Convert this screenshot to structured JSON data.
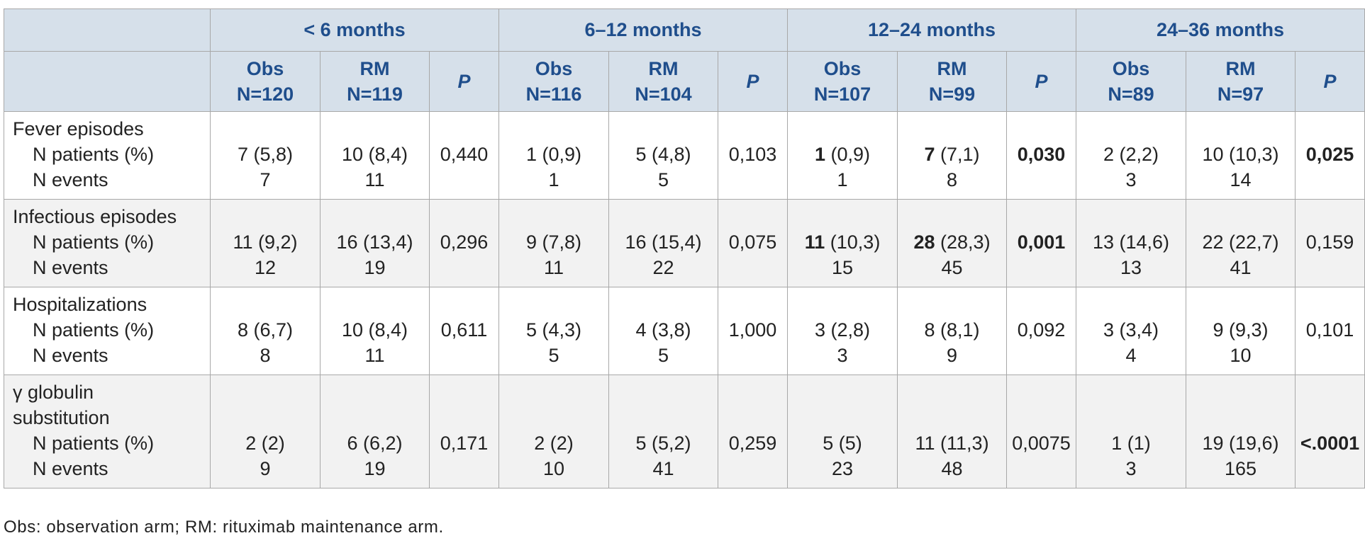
{
  "table": {
    "groups": [
      {
        "label": "< 6 months",
        "obs": {
          "arm": "Obs",
          "n": "N=120"
        },
        "rm": {
          "arm": "RM",
          "n": "N=119"
        },
        "p": "P"
      },
      {
        "label": "6–12 months",
        "obs": {
          "arm": "Obs",
          "n": "N=116"
        },
        "rm": {
          "arm": "RM",
          "n": "N=104"
        },
        "p": "P"
      },
      {
        "label": "12–24 months",
        "obs": {
          "arm": "Obs",
          "n": "N=107"
        },
        "rm": {
          "arm": "RM",
          "n": "N=99"
        },
        "p": "P"
      },
      {
        "label": "24–36 months",
        "obs": {
          "arm": "Obs",
          "n": "N=89"
        },
        "rm": {
          "arm": "RM",
          "n": "N=97"
        },
        "p": "P"
      }
    ],
    "rows": [
      {
        "label": [
          "Fever episodes"
        ],
        "patients_label": "N patients (%)",
        "events_label": "N events",
        "cells": [
          {
            "obs": {
              "patients": "7 (5,8)",
              "events": "7"
            },
            "rm": {
              "patients": "10 (8,4)",
              "events": "11"
            },
            "p": "0,440"
          },
          {
            "obs": {
              "patients": "1 (0,9)",
              "events": "1"
            },
            "rm": {
              "patients": "5 (4,8)",
              "events": "5"
            },
            "p": "0,103"
          },
          {
            "obs": {
              "patients": "1 (0,9)",
              "events": "1",
              "bold": true
            },
            "rm": {
              "patients": "7 (7,1)",
              "events": "8",
              "bold": true
            },
            "p": "0,030",
            "p_bold": true
          },
          {
            "obs": {
              "patients": "2 (2,2)",
              "events": "3"
            },
            "rm": {
              "patients": "10 (10,3)",
              "events": "14"
            },
            "p": "0,025",
            "p_bold": true
          }
        ]
      },
      {
        "label": [
          "Infectious episodes"
        ],
        "patients_label": "N patients (%)",
        "events_label": "N events",
        "cells": [
          {
            "obs": {
              "patients": "11 (9,2)",
              "events": "12"
            },
            "rm": {
              "patients": "16 (13,4)",
              "events": "19"
            },
            "p": "0,296"
          },
          {
            "obs": {
              "patients": "9 (7,8)",
              "events": "11"
            },
            "rm": {
              "patients": "16 (15,4)",
              "events": "22"
            },
            "p": "0,075"
          },
          {
            "obs": {
              "patients": "11 (10,3)",
              "events": "15",
              "bold": true
            },
            "rm": {
              "patients": "28 (28,3)",
              "events": "45",
              "bold": true
            },
            "p": "0,001",
            "p_bold": true
          },
          {
            "obs": {
              "patients": "13 (14,6)",
              "events": "13"
            },
            "rm": {
              "patients": "22 (22,7)",
              "events": "41"
            },
            "p": "0,159"
          }
        ]
      },
      {
        "label": [
          "Hospitalizations"
        ],
        "patients_label": "N patients (%)",
        "events_label": "N events",
        "cells": [
          {
            "obs": {
              "patients": "8 (6,7)",
              "events": "8"
            },
            "rm": {
              "patients": "10 (8,4)",
              "events": "11"
            },
            "p": "0,611"
          },
          {
            "obs": {
              "patients": "5 (4,3)",
              "events": "5"
            },
            "rm": {
              "patients": "4 (3,8)",
              "events": "5"
            },
            "p": "1,000"
          },
          {
            "obs": {
              "patients": "3 (2,8)",
              "events": "3"
            },
            "rm": {
              "patients": "8 (8,1)",
              "events": "9"
            },
            "p": "0,092"
          },
          {
            "obs": {
              "patients": "3 (3,4)",
              "events": "4"
            },
            "rm": {
              "patients": "9 (9,3)",
              "events": "10"
            },
            "p": "0,101"
          }
        ]
      },
      {
        "label": [
          "γ globulin",
          "substitution"
        ],
        "patients_label": "N patients (%)",
        "events_label": "N events",
        "cells": [
          {
            "obs": {
              "patients": "2 (2)",
              "events": "9"
            },
            "rm": {
              "patients": "6 (6,2)",
              "events": "19"
            },
            "p": "0,171"
          },
          {
            "obs": {
              "patients": "2 (2)",
              "events": "10"
            },
            "rm": {
              "patients": "5 (5,2)",
              "events": "41"
            },
            "p": "0,259"
          },
          {
            "obs": {
              "patients": "5 (5)",
              "events": "23"
            },
            "rm": {
              "patients": "11 (11,3)",
              "events": "48"
            },
            "p": "0,0075"
          },
          {
            "obs": {
              "patients": "1 (1)",
              "events": "3"
            },
            "rm": {
              "patients": "19 (19,6)",
              "events": "165"
            },
            "p": "<.0001",
            "p_bold": true
          }
        ]
      }
    ]
  },
  "footnote": "Obs: observation arm; RM: rituximab maintenance arm."
}
